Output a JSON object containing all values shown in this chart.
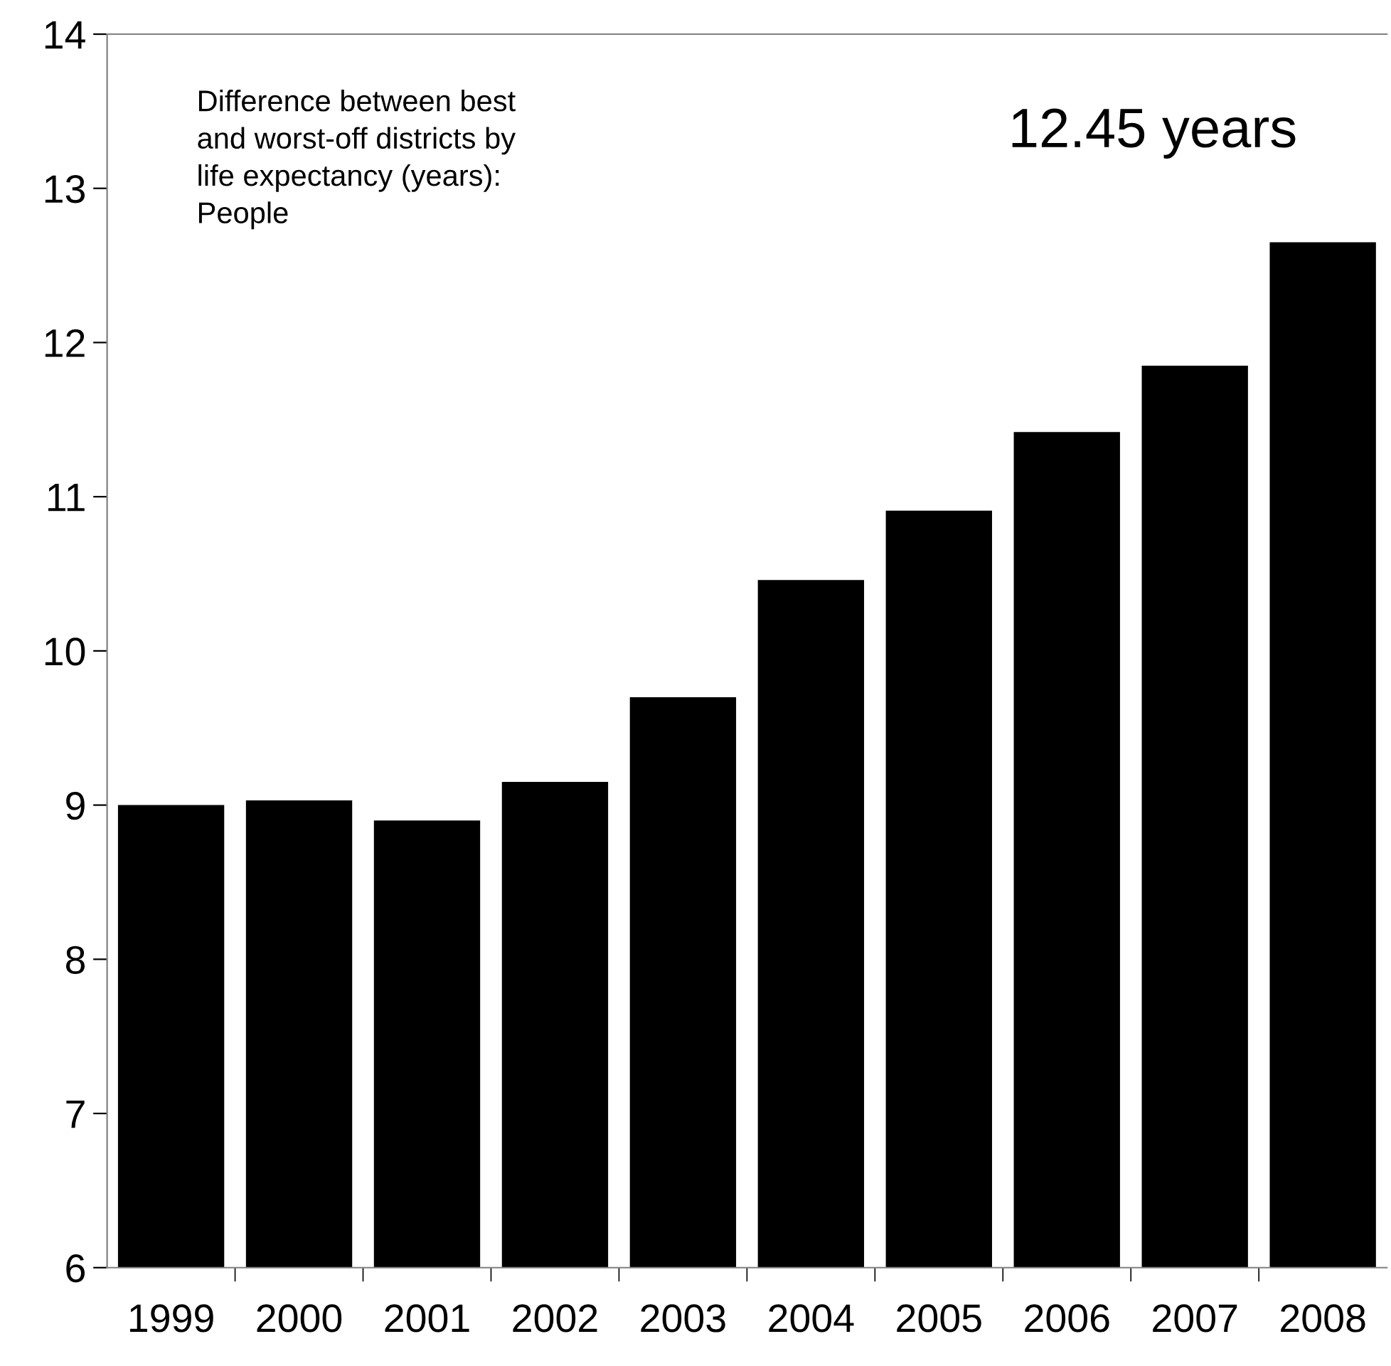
{
  "chart_data": {
    "type": "bar",
    "title": "Difference between best\nand worst-off districts by\nlife expectancy (years):\nPeople",
    "categories": [
      "1999",
      "2000",
      "2001",
      "2002",
      "2003",
      "2004",
      "2005",
      "2006",
      "2007",
      "2008"
    ],
    "values": [
      9.0,
      9.03,
      8.9,
      9.15,
      9.7,
      10.46,
      10.91,
      11.42,
      11.85,
      12.65
    ],
    "color": "#000000",
    "ylim": [
      6,
      14
    ],
    "yticks": [
      6,
      7,
      8,
      9,
      10,
      11,
      12,
      13,
      14
    ],
    "annotations": [
      "12.45 years"
    ],
    "grid": false
  }
}
